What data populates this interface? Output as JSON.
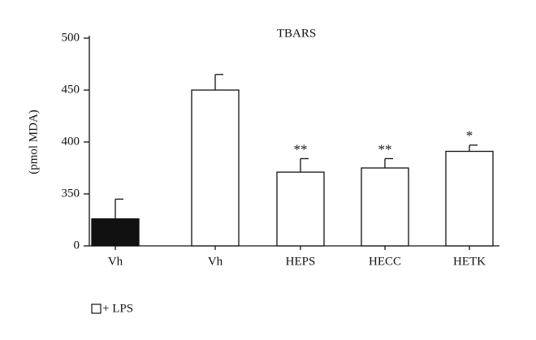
{
  "chart_data": {
    "type": "bar",
    "title": "TBARS",
    "y_label": "(pmol MDA)",
    "categories": [
      "Vh",
      "Vh",
      "HEPS",
      "HECC",
      "HETK"
    ],
    "values": [
      326,
      450,
      371,
      375,
      391
    ],
    "errors": [
      19,
      15,
      13,
      9,
      6
    ],
    "significance": [
      null,
      null,
      "**",
      "**",
      "*"
    ],
    "colors": [
      "#111111",
      "#ffffff",
      "#ffffff",
      "#ffffff",
      "#ffffff"
    ],
    "ylim": [
      0,
      500
    ],
    "y_break": [
      0,
      300
    ],
    "yticks": [
      0,
      350,
      400,
      450,
      500
    ],
    "legend": "+ LPS"
  }
}
